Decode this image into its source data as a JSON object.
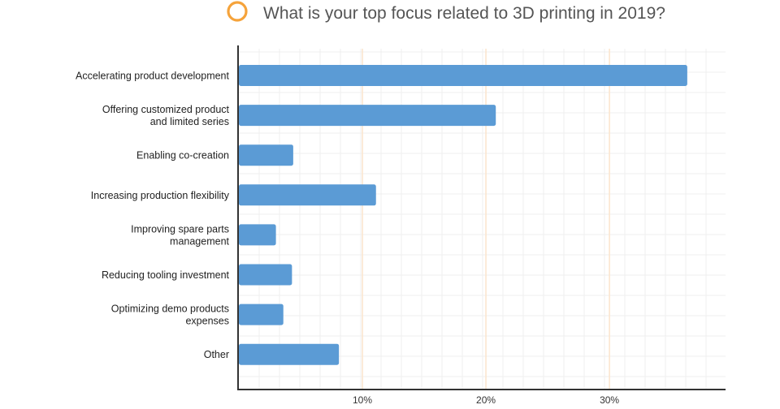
{
  "chart_data": {
    "type": "bar",
    "orientation": "horizontal",
    "title": "What is your top focus related to 3D printing in 2019?",
    "categories": [
      [
        "Accelerating product development"
      ],
      [
        "Offering customized product",
        "and limited series"
      ],
      [
        "Enabling co-creation"
      ],
      [
        "Increasing production flexibility"
      ],
      [
        "Improving spare parts",
        "management"
      ],
      [
        "Reducing tooling investment"
      ],
      [
        "Optimizing demo products",
        "expenses"
      ],
      [
        "Other"
      ]
    ],
    "values": [
      36.3,
      20.8,
      4.4,
      11.1,
      3.0,
      4.3,
      3.6,
      8.1
    ],
    "xlim": [
      0,
      39.4
    ],
    "xticks": [
      {
        "value": 10,
        "label": "10%"
      },
      {
        "value": 20,
        "label": "20%"
      },
      {
        "value": 30,
        "label": "30%"
      }
    ],
    "grid": true,
    "bar_color": "#5b9bd5",
    "accent_color": "#f5a33b"
  }
}
